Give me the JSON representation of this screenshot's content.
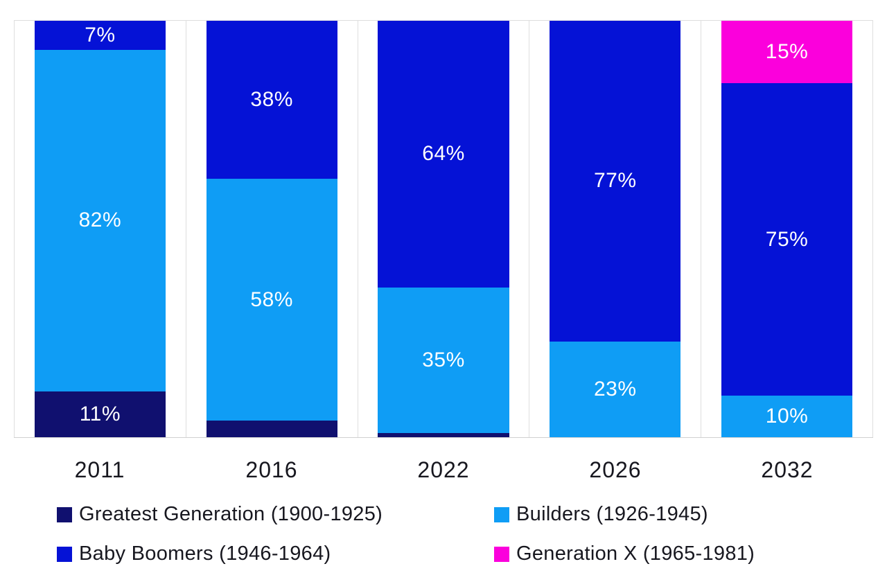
{
  "colors": {
    "background": "#ffffff",
    "gridline": "#dedede",
    "axis_line": "#d0d0d0",
    "text_dark": "#17171f",
    "data_label_text": "#ffffff"
  },
  "chart_data": {
    "type": "bar",
    "subtype": "100%-stacked-vertical",
    "title": "",
    "xlabel": "",
    "ylabel": "",
    "ylim": [
      0,
      100
    ],
    "grid": "vertical category separators and top/bottom border lines, light gray",
    "legend_position": "bottom, two columns",
    "categories": [
      "2011",
      "2016",
      "2022",
      "2026",
      "2032"
    ],
    "series_colors": {
      "Greatest Generation (1900-1925)": "#10106f",
      "Builders (1926-1945)": "#0f9df5",
      "Baby Boomers (1946-1964)": "#0512d6",
      "Generation X (1965-1981)": "#fb00dc"
    },
    "series": [
      {
        "name": "Greatest Generation (1900-1925)",
        "color": "#10106f",
        "values": [
          11,
          4,
          1,
          0,
          0
        ]
      },
      {
        "name": "Builders (1926-1945)",
        "color": "#0f9df5",
        "values": [
          82,
          58,
          35,
          23,
          10
        ]
      },
      {
        "name": "Baby Boomers (1946-1964)",
        "color": "#0512d6",
        "values": [
          7,
          38,
          64,
          77,
          75
        ]
      },
      {
        "name": "Generation X (1965-1981)",
        "color": "#fb00dc",
        "values": [
          0,
          0,
          0,
          0,
          15
        ]
      }
    ],
    "bars": [
      {
        "category": "2011",
        "segments": [
          {
            "series": "Greatest Generation (1900-1925)",
            "value": 11,
            "label": "11%"
          },
          {
            "series": "Builders (1926-1945)",
            "value": 82,
            "label": "82%"
          },
          {
            "series": "Baby Boomers (1946-1964)",
            "value": 7,
            "label": "7%"
          }
        ]
      },
      {
        "category": "2016",
        "segments": [
          {
            "series": "Greatest Generation (1900-1925)",
            "value": 4,
            "label": ""
          },
          {
            "series": "Builders (1926-1945)",
            "value": 58,
            "label": "58%"
          },
          {
            "series": "Baby Boomers (1946-1964)",
            "value": 38,
            "label": "38%"
          }
        ]
      },
      {
        "category": "2022",
        "segments": [
          {
            "series": "Greatest Generation (1900-1925)",
            "value": 1,
            "label": ""
          },
          {
            "series": "Builders (1926-1945)",
            "value": 35,
            "label": "35%"
          },
          {
            "series": "Baby Boomers (1946-1964)",
            "value": 64,
            "label": "64%"
          }
        ]
      },
      {
        "category": "2026",
        "segments": [
          {
            "series": "Builders (1926-1945)",
            "value": 23,
            "label": "23%"
          },
          {
            "series": "Baby Boomers (1946-1964)",
            "value": 77,
            "label": "77%"
          }
        ]
      },
      {
        "category": "2032",
        "segments": [
          {
            "series": "Builders (1926-1945)",
            "value": 10,
            "label": "10%"
          },
          {
            "series": "Baby Boomers (1946-1964)",
            "value": 75,
            "label": "75%"
          },
          {
            "series": "Generation X (1965-1981)",
            "value": 15,
            "label": "15%"
          }
        ]
      }
    ]
  },
  "legend": {
    "items": [
      {
        "label": "Greatest Generation (1900-1925)",
        "color": "#10106f"
      },
      {
        "label": "Builders (1926-1945)",
        "color": "#0f9df5"
      },
      {
        "label": "Baby Boomers (1946-1964)",
        "color": "#0512d6"
      },
      {
        "label": "Generation X (1965-1981)",
        "color": "#fb00dc"
      }
    ]
  }
}
